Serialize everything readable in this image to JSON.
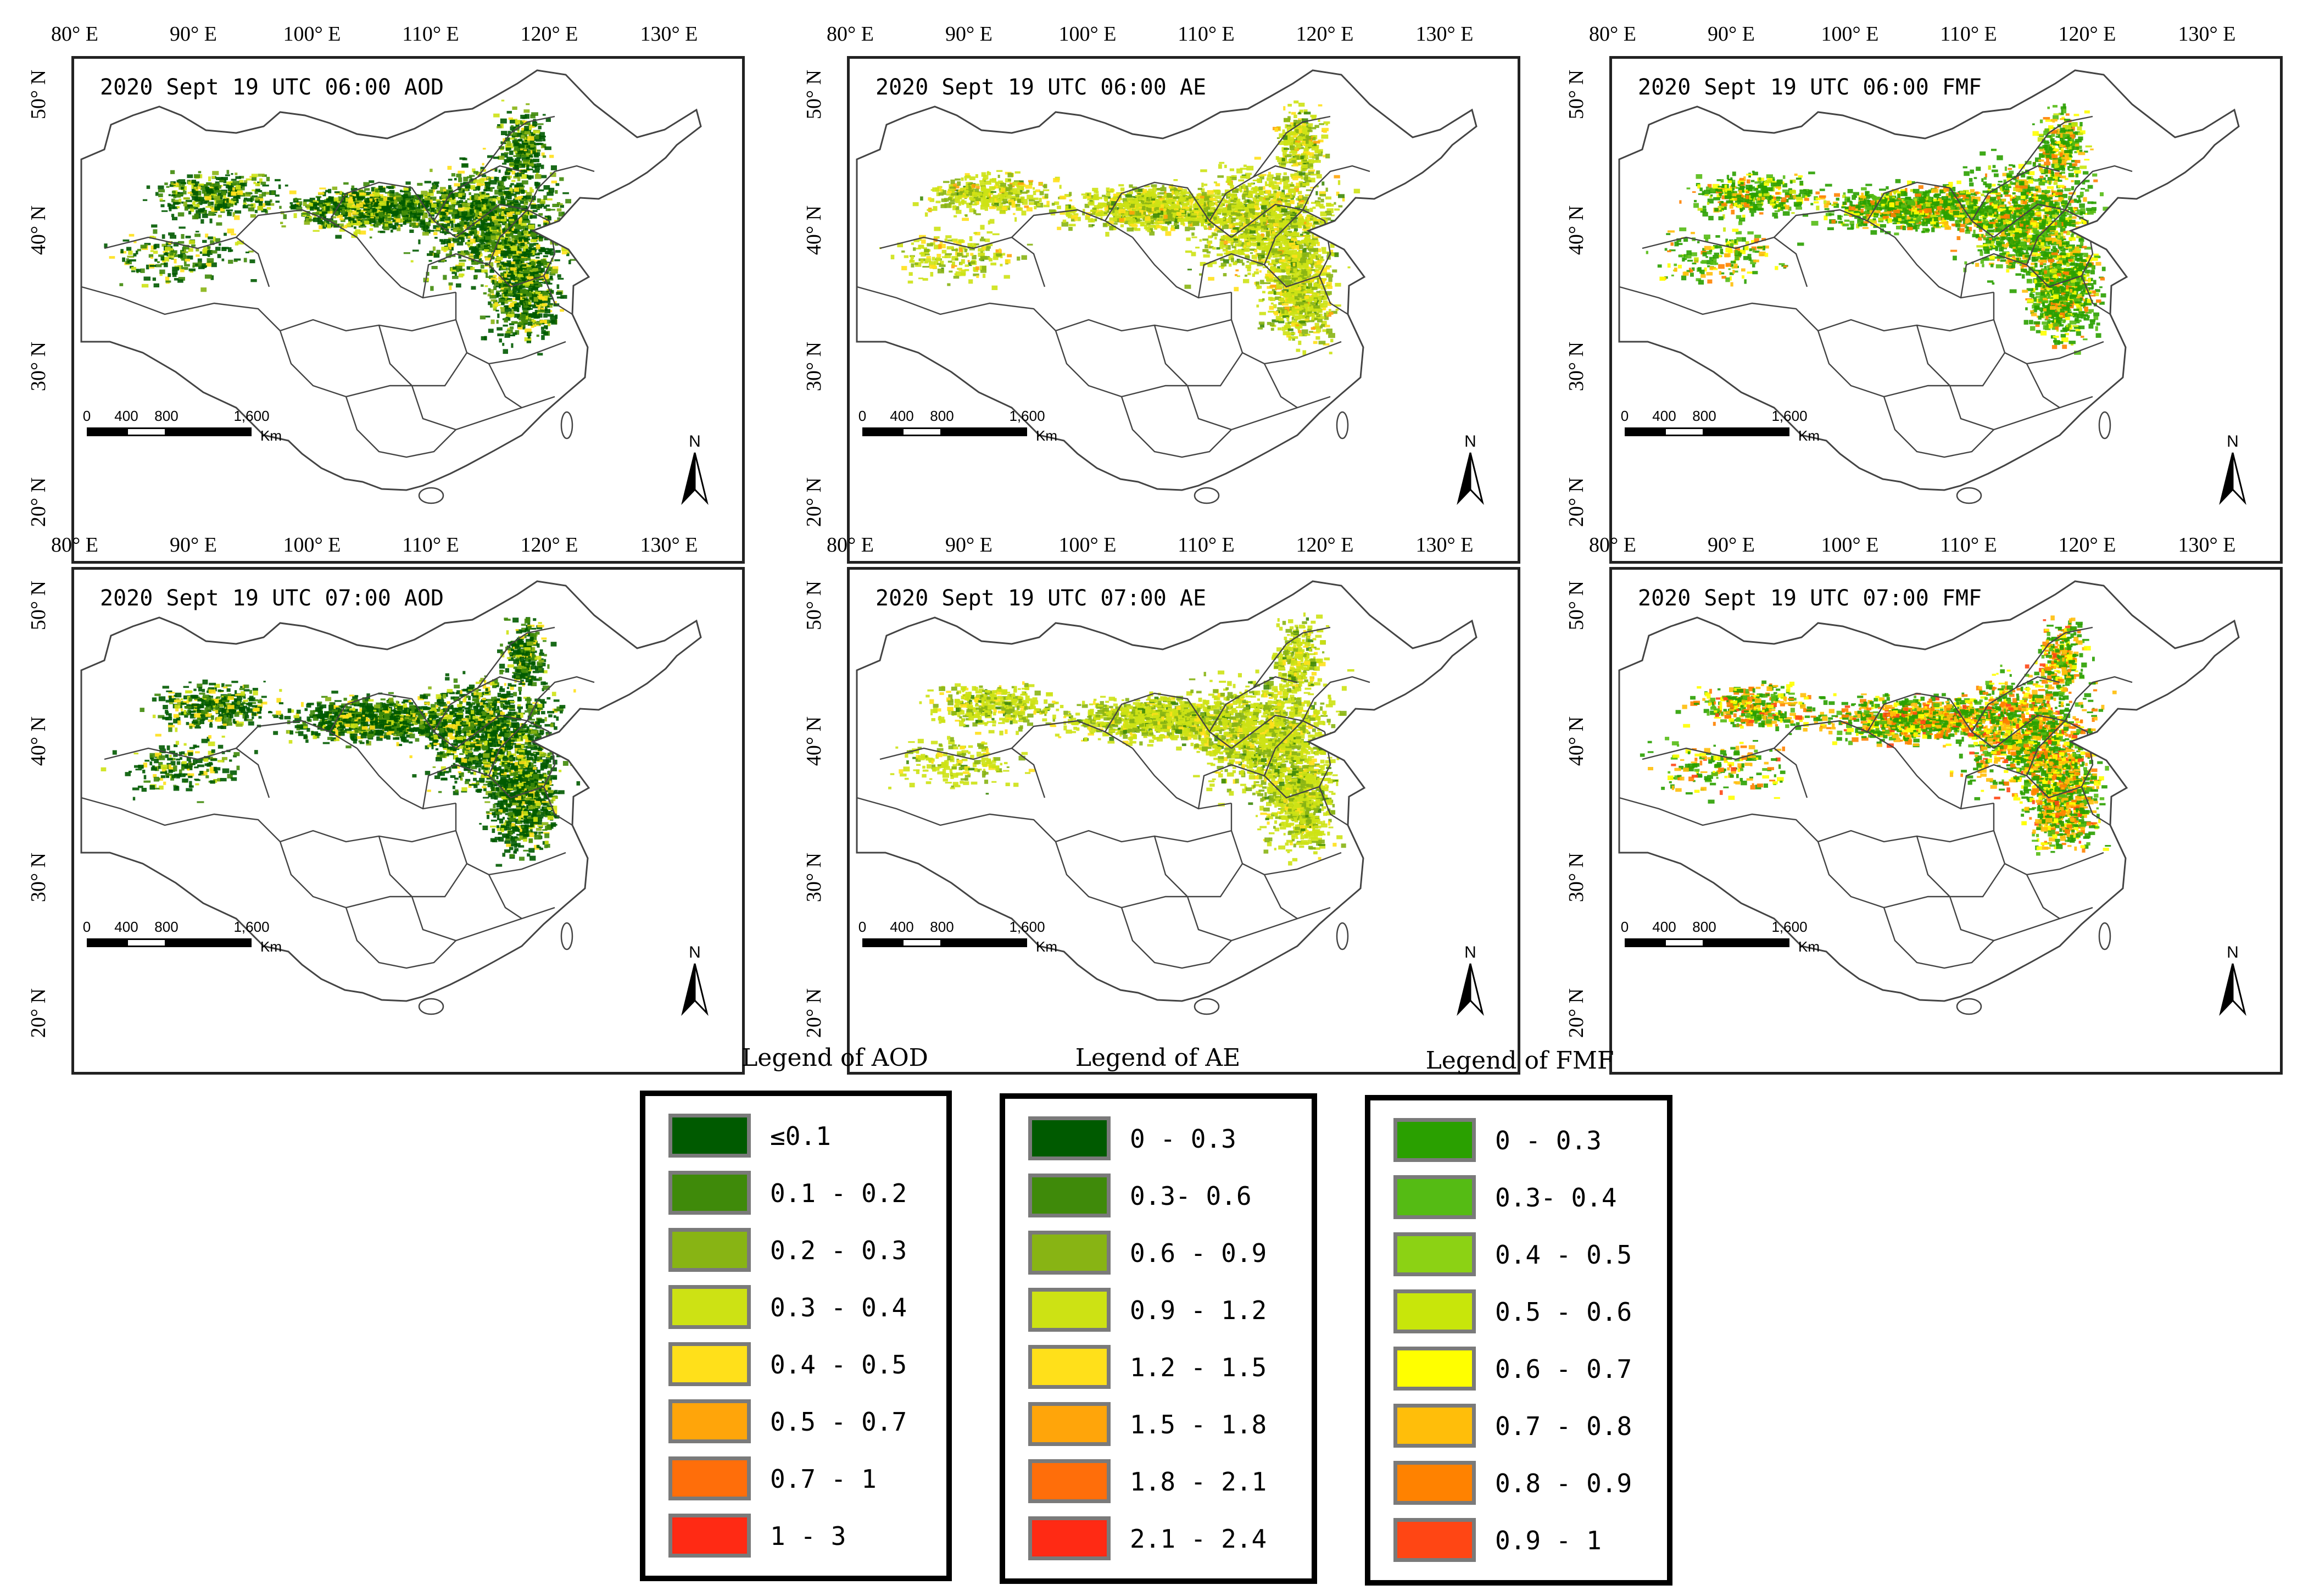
{
  "lon_labels": [
    "80° E",
    "90° E",
    "100° E",
    "110° E",
    "120° E",
    "130° E"
  ],
  "lat_labels": [
    "50° N",
    "40° N",
    "30° N",
    "20° N"
  ],
  "panels": [
    {
      "title": "2020 Sept 19 UTC 06:00 AOD",
      "variable": "AOD",
      "time": "06:00"
    },
    {
      "title": "2020 Sept 19 UTC 06:00 AE",
      "variable": "AE",
      "time": "06:00"
    },
    {
      "title": "2020 Sept 19 UTC 06:00 FMF",
      "variable": "FMF",
      "time": "06:00"
    },
    {
      "title": "2020 Sept 19 UTC 07:00 AOD",
      "variable": "AOD",
      "time": "07:00"
    },
    {
      "title": "2020 Sept 19 UTC 07:00 AE",
      "variable": "AE",
      "time": "07:00"
    },
    {
      "title": "2020 Sept 19 UTC 07:00 FMF",
      "variable": "FMF",
      "time": "07:00"
    }
  ],
  "scalebar": {
    "labels": [
      "0",
      "400",
      "800",
      "1,600"
    ],
    "unit": "Km"
  },
  "north_label": "N",
  "legends": [
    {
      "title": "Legend of AOD",
      "items": [
        {
          "label": "≤0.1",
          "color": "#005a00"
        },
        {
          "label": "0.1 - 0.2",
          "color": "#3f8a0a"
        },
        {
          "label": "0.2 - 0.3",
          "color": "#88b414"
        },
        {
          "label": "0.3 - 0.4",
          "color": "#cde214"
        },
        {
          "label": "0.4 - 0.5",
          "color": "#ffe01a"
        },
        {
          "label": "0.5 - 0.7",
          "color": "#ffa50a"
        },
        {
          "label": "0.7 - 1",
          "color": "#ff6e0a"
        },
        {
          "label": "1 - 3",
          "color": "#ff2a14"
        }
      ]
    },
    {
      "title": "Legend of AE",
      "items": [
        {
          "label": "0 - 0.3",
          "color": "#005a00"
        },
        {
          "label": "0.3- 0.6",
          "color": "#3f8a0a"
        },
        {
          "label": "0.6 - 0.9",
          "color": "#88b414"
        },
        {
          "label": "0.9 - 1.2",
          "color": "#cde214"
        },
        {
          "label": "1.2 - 1.5",
          "color": "#ffe01a"
        },
        {
          "label": "1.5 - 1.8",
          "color": "#ffa50a"
        },
        {
          "label": "1.8 - 2.1",
          "color": "#ff6e0a"
        },
        {
          "label": "2.1 - 2.4",
          "color": "#ff2a14"
        }
      ]
    },
    {
      "title": "Legend of FMF",
      "items": [
        {
          "label": "0 - 0.3",
          "color": "#2aa000"
        },
        {
          "label": "0.3- 0.4",
          "color": "#55bb14"
        },
        {
          "label": "0.4 - 0.5",
          "color": "#8cd214"
        },
        {
          "label": "0.5 - 0.6",
          "color": "#c8e60a"
        },
        {
          "label": "0.6 - 0.7",
          "color": "#ffff00"
        },
        {
          "label": "0.7 - 0.8",
          "color": "#ffbe0a"
        },
        {
          "label": "0.8 - 0.9",
          "color": "#ff8200"
        },
        {
          "label": "0.9 - 1",
          "color": "#ff4614"
        }
      ]
    }
  ],
  "colors": {
    "frame": "#222222",
    "boundary": "#444444",
    "swatch_border": "#7a7a7a"
  }
}
